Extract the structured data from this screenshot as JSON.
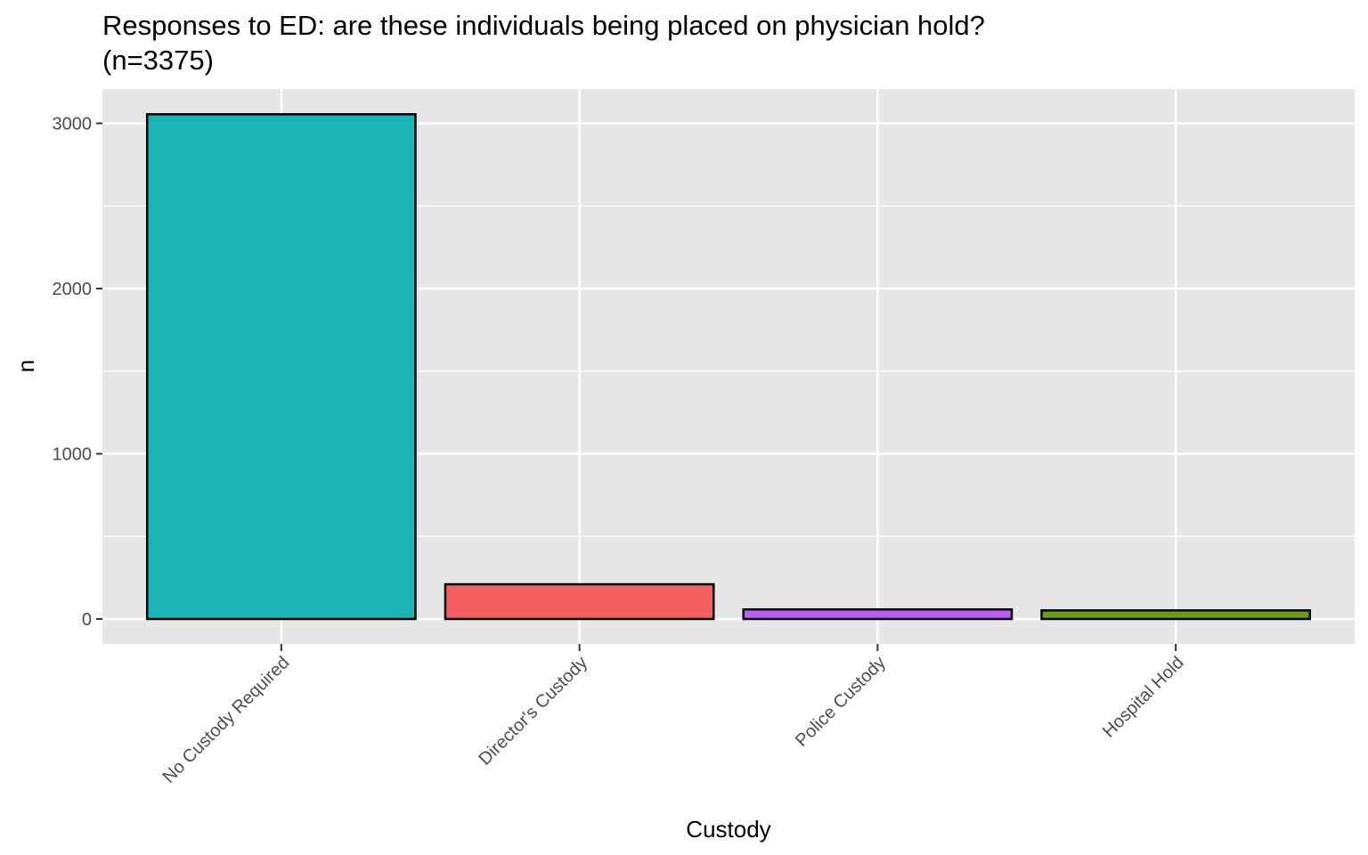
{
  "chart_data": {
    "type": "bar",
    "title": "Responses to ED: are these individuals being placed on physician hold?",
    "subtitle": "(n=3375)",
    "xlabel": "Custody",
    "ylabel": "n",
    "categories": [
      "No Custody Required",
      "Director's Custody",
      "Police Custody",
      "Hospital Hold"
    ],
    "values": [
      3055,
      210,
      58,
      52
    ],
    "colors": [
      "#1AB3B6",
      "#F4605F",
      "#BE5CFB",
      "#6A9F0F"
    ],
    "ylim": [
      0,
      3150
    ],
    "y_ticks": [
      0,
      1000,
      2000,
      3000
    ],
    "y_tick_labels": [
      "0",
      "1000",
      "2000",
      "3000"
    ],
    "grid": true,
    "legend": "none",
    "panel_background": "#E6E6E6"
  }
}
